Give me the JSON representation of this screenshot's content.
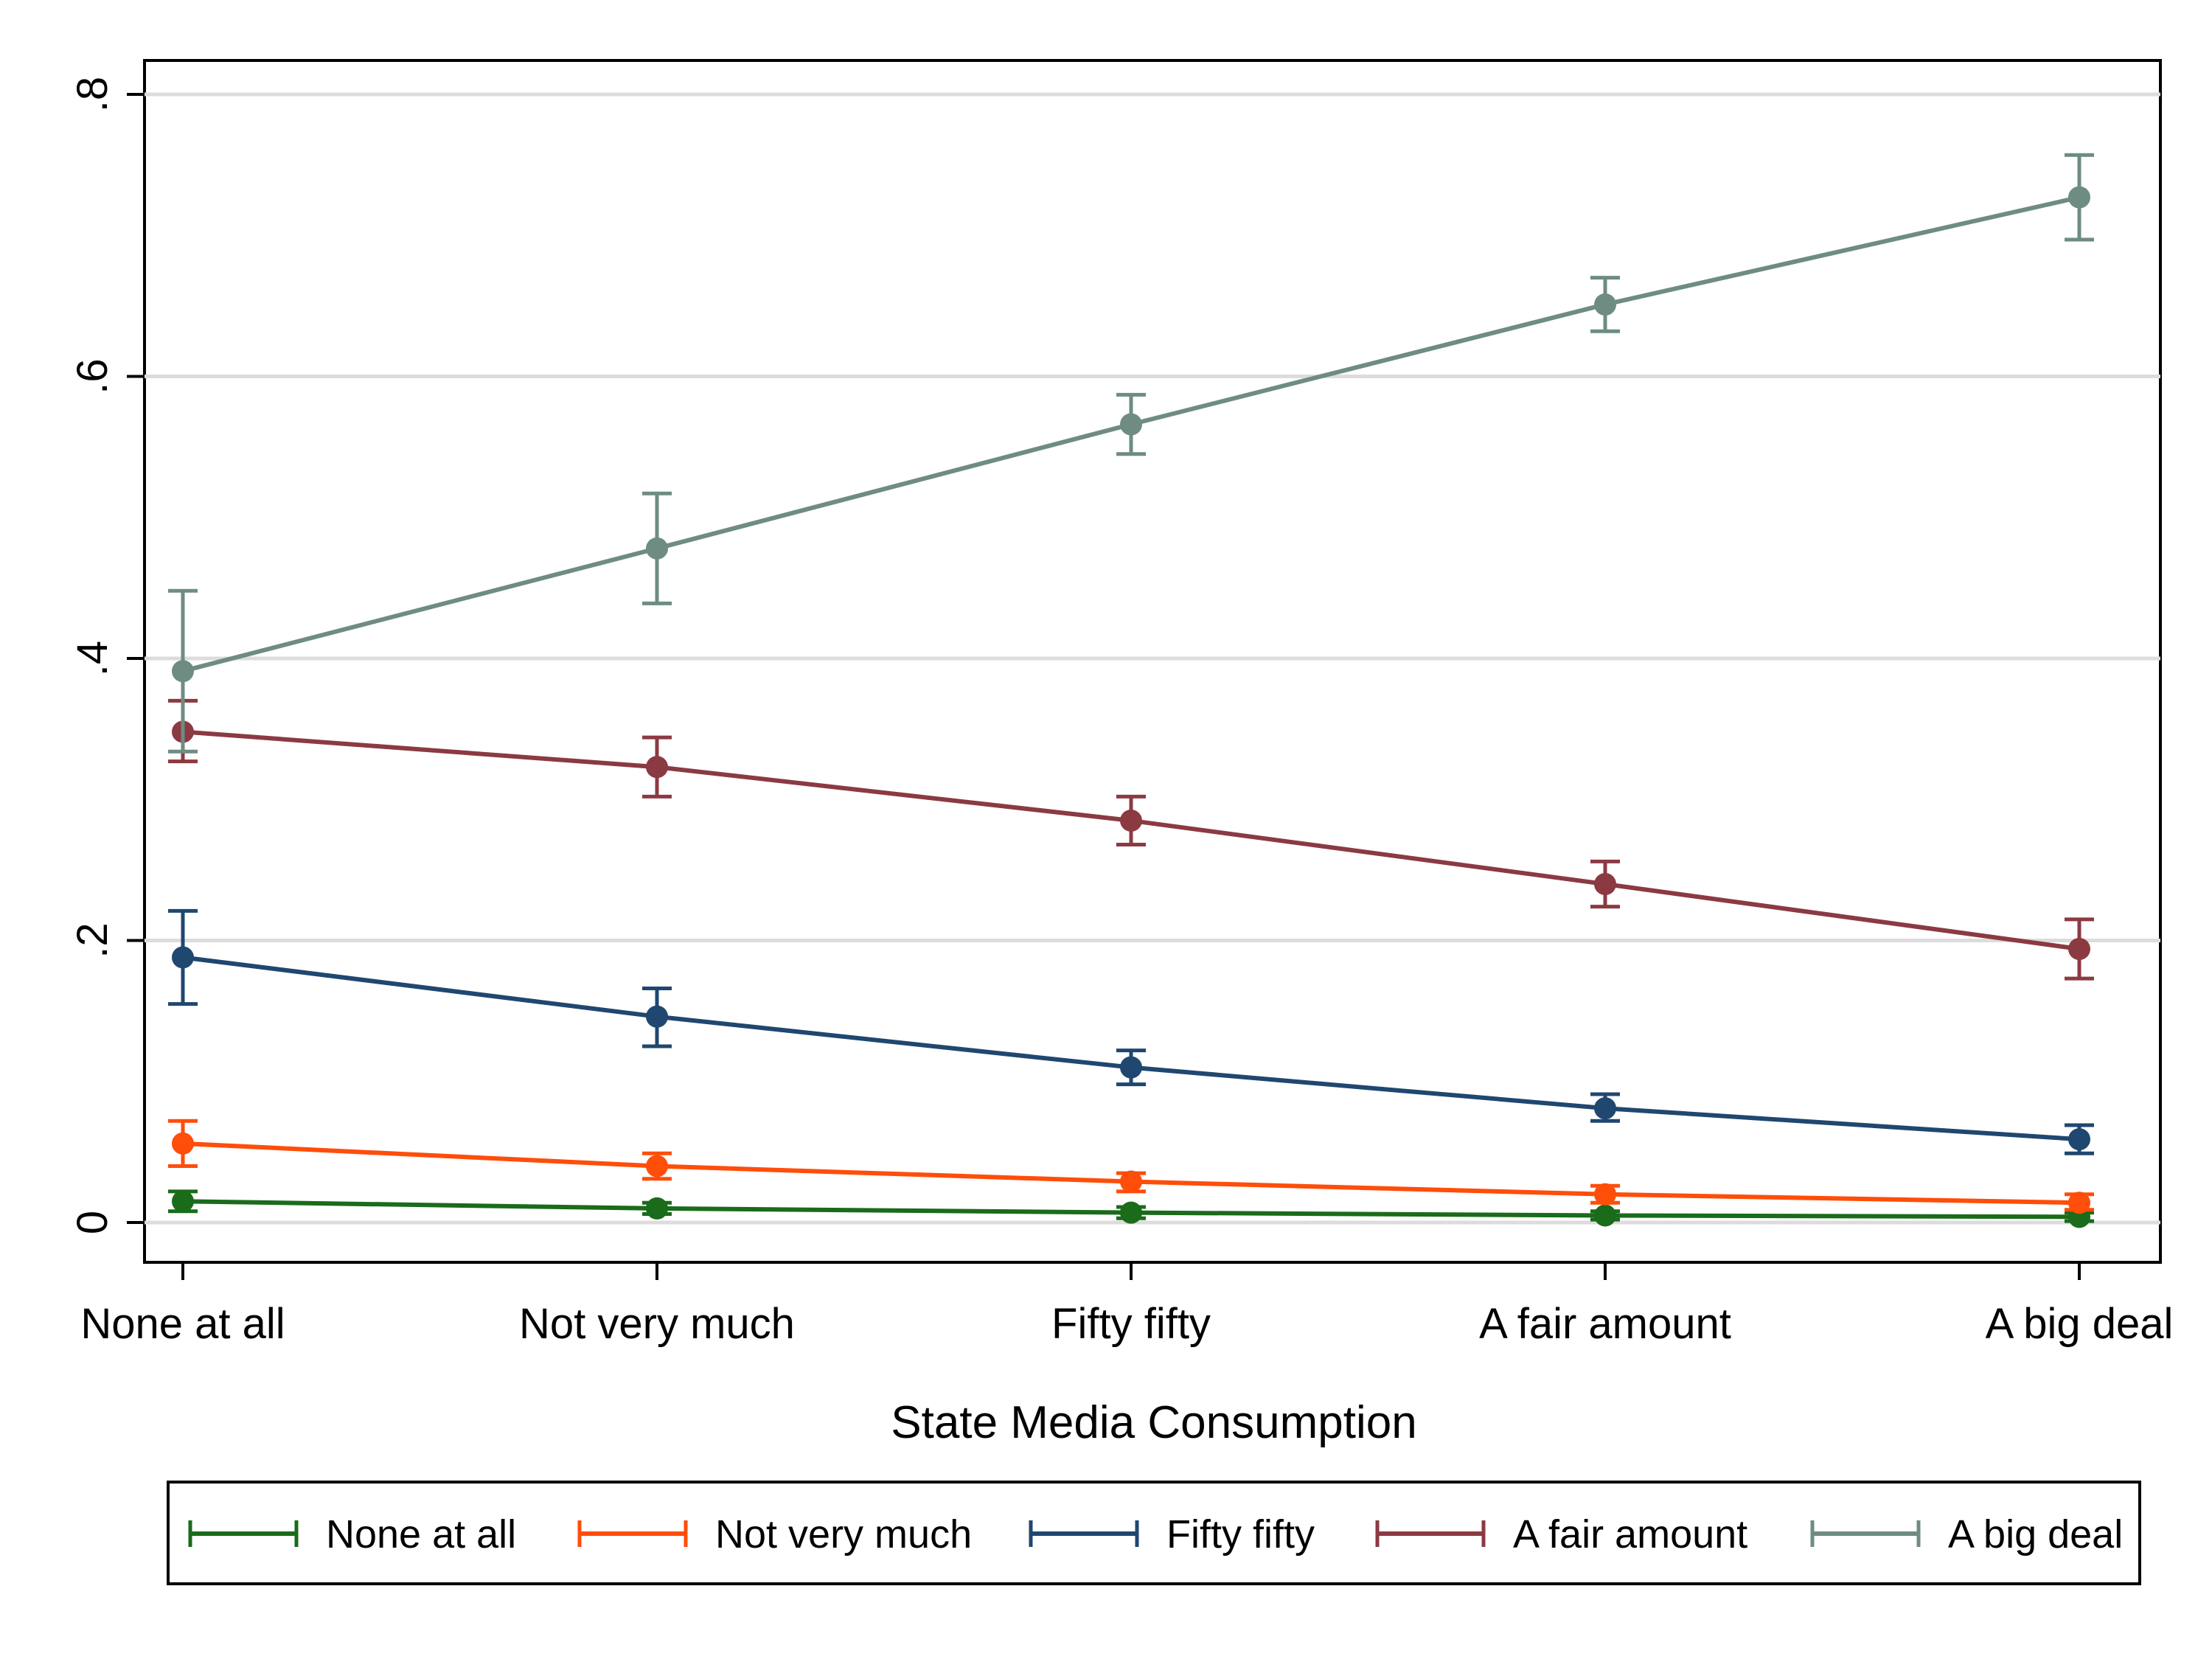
{
  "chart_data": {
    "type": "line",
    "title": "",
    "xlabel": "State Media Consumption",
    "ylabel": "",
    "ylim": [
      0,
      0.8
    ],
    "yticks": [
      {
        "value": 0,
        "label": "0"
      },
      {
        "value": 0.2,
        "label": ".2"
      },
      {
        "value": 0.4,
        "label": ".4"
      },
      {
        "value": 0.6,
        "label": ".6"
      },
      {
        "value": 0.8,
        "label": ".8"
      }
    ],
    "categories": [
      "None at all",
      "Not very much",
      "Fifty fifty",
      "A fair amount",
      "A big deal"
    ],
    "grid": true,
    "legend_position": "bottom",
    "series": [
      {
        "name": "None at all",
        "color": "#1a6b1a",
        "values": [
          0.015,
          0.01,
          0.007,
          0.005,
          0.004
        ],
        "lower": [
          0.008,
          0.006,
          0.003,
          0.002,
          0.001
        ],
        "upper": [
          0.022,
          0.014,
          0.011,
          0.008,
          0.007
        ]
      },
      {
        "name": "Not very much",
        "color": "#ff4d0a",
        "values": [
          0.056,
          0.04,
          0.029,
          0.02,
          0.014
        ],
        "lower": [
          0.04,
          0.031,
          0.022,
          0.014,
          0.009
        ],
        "upper": [
          0.072,
          0.049,
          0.035,
          0.026,
          0.02
        ]
      },
      {
        "name": "Fifty fifty",
        "color": "#1f4770",
        "values": [
          0.188,
          0.146,
          0.11,
          0.081,
          0.059
        ],
        "lower": [
          0.155,
          0.125,
          0.098,
          0.072,
          0.049
        ],
        "upper": [
          0.221,
          0.166,
          0.122,
          0.091,
          0.069
        ]
      },
      {
        "name": "A fair amount",
        "color": "#8b3a42",
        "values": [
          0.348,
          0.323,
          0.285,
          0.24,
          0.194
        ],
        "lower": [
          0.327,
          0.302,
          0.268,
          0.224,
          0.173
        ],
        "upper": [
          0.37,
          0.344,
          0.302,
          0.256,
          0.215
        ]
      },
      {
        "name": "A big deal",
        "color": "#6e8c82",
        "values": [
          0.391,
          0.478,
          0.566,
          0.651,
          0.727
        ],
        "lower": [
          0.334,
          0.439,
          0.545,
          0.632,
          0.697
        ],
        "upper": [
          0.448,
          0.517,
          0.587,
          0.67,
          0.757
        ]
      }
    ]
  }
}
